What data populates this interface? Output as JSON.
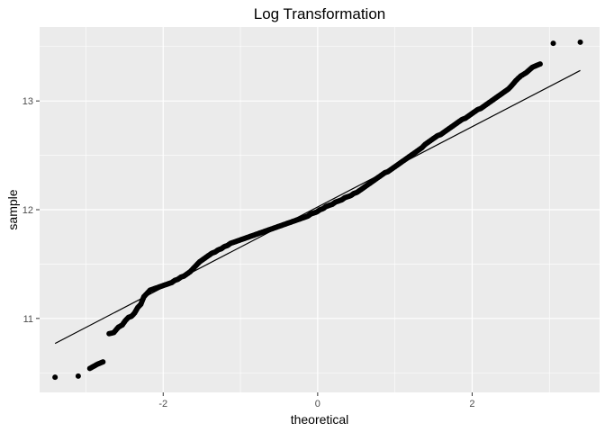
{
  "chart_data": {
    "type": "scatter",
    "title": "Log Transformation",
    "xlabel": "theoretical",
    "ylabel": "sample",
    "xlim": [
      -3.6,
      3.65
    ],
    "ylim": [
      10.32,
      13.68
    ],
    "x_ticks": [
      -2,
      0,
      2
    ],
    "x_tick_labels": [
      "-2",
      "0",
      "2"
    ],
    "y_ticks": [
      11,
      12,
      13
    ],
    "y_tick_labels": [
      "11",
      "12",
      "13"
    ],
    "grid": true,
    "legend": "none",
    "reference_line": {
      "x": [
        -3.4,
        3.4
      ],
      "y": [
        10.77,
        13.28
      ]
    },
    "points": {
      "x": [
        -3.4,
        -3.1,
        -2.95,
        -2.85,
        -2.78,
        -2.7,
        -2.64,
        -2.58,
        -2.53,
        -2.49,
        -2.45,
        -2.41,
        -2.37,
        -2.33,
        -2.29,
        -2.25,
        -2.21,
        -2.17,
        -2.13,
        -2.09,
        -2.05,
        -2.01,
        -1.97,
        -1.93,
        -1.89,
        -1.85,
        -1.81,
        -1.77,
        -1.73,
        -1.69,
        -1.65,
        -1.61,
        -1.57,
        -1.53,
        -1.49,
        -1.45,
        -1.41,
        -1.37,
        -1.33,
        -1.29,
        -1.25,
        -1.21,
        -1.17,
        -1.13,
        -1.09,
        -1.05,
        -1.01,
        -0.97,
        -0.93,
        -0.89,
        -0.85,
        -0.81,
        -0.77,
        -0.73,
        -0.69,
        -0.65,
        -0.61,
        -0.57,
        -0.53,
        -0.49,
        -0.45,
        -0.41,
        -0.37,
        -0.33,
        -0.29,
        -0.25,
        -0.21,
        -0.17,
        -0.13,
        -0.09,
        -0.05,
        -0.01,
        0.03,
        0.07,
        0.11,
        0.15,
        0.19,
        0.23,
        0.27,
        0.31,
        0.35,
        0.39,
        0.43,
        0.47,
        0.51,
        0.55,
        0.59,
        0.63,
        0.67,
        0.71,
        0.75,
        0.79,
        0.83,
        0.87,
        0.91,
        0.95,
        0.99,
        1.03,
        1.07,
        1.11,
        1.15,
        1.19,
        1.23,
        1.27,
        1.31,
        1.35,
        1.39,
        1.43,
        1.47,
        1.51,
        1.55,
        1.59,
        1.63,
        1.67,
        1.71,
        1.75,
        1.79,
        1.83,
        1.87,
        1.91,
        1.95,
        1.99,
        2.03,
        2.07,
        2.11,
        2.15,
        2.19,
        2.23,
        2.27,
        2.31,
        2.35,
        2.39,
        2.43,
        2.47,
        2.51,
        2.57,
        2.63,
        2.7,
        2.78,
        2.88,
        3.05,
        3.4
      ],
      "y": [
        10.46,
        10.47,
        10.54,
        10.58,
        10.6,
        10.86,
        10.87,
        10.92,
        10.94,
        10.98,
        11.01,
        11.02,
        11.05,
        11.1,
        11.13,
        11.2,
        11.23,
        11.26,
        11.27,
        11.28,
        11.29,
        11.3,
        11.31,
        11.32,
        11.33,
        11.35,
        11.36,
        11.38,
        11.39,
        11.41,
        11.43,
        11.46,
        11.49,
        11.52,
        11.54,
        11.56,
        11.58,
        11.6,
        11.61,
        11.63,
        11.64,
        11.66,
        11.67,
        11.69,
        11.7,
        11.71,
        11.72,
        11.73,
        11.74,
        11.75,
        11.76,
        11.77,
        11.78,
        11.79,
        11.8,
        11.81,
        11.82,
        11.83,
        11.84,
        11.85,
        11.86,
        11.87,
        11.88,
        11.89,
        11.9,
        11.91,
        11.92,
        11.93,
        11.94,
        11.96,
        11.97,
        11.98,
        12.0,
        12.01,
        12.03,
        12.04,
        12.05,
        12.07,
        12.08,
        12.09,
        12.11,
        12.12,
        12.13,
        12.15,
        12.16,
        12.18,
        12.2,
        12.22,
        12.24,
        12.26,
        12.28,
        12.3,
        12.32,
        12.34,
        12.35,
        12.37,
        12.39,
        12.41,
        12.43,
        12.45,
        12.47,
        12.49,
        12.51,
        12.53,
        12.55,
        12.57,
        12.6,
        12.62,
        12.64,
        12.66,
        12.68,
        12.69,
        12.71,
        12.73,
        12.75,
        12.77,
        12.79,
        12.81,
        12.83,
        12.84,
        12.86,
        12.88,
        12.9,
        12.92,
        12.93,
        12.95,
        12.97,
        12.99,
        13.01,
        13.03,
        13.05,
        13.07,
        13.09,
        13.11,
        13.14,
        13.19,
        13.23,
        13.26,
        13.31,
        13.34,
        13.53,
        13.54
      ]
    }
  }
}
